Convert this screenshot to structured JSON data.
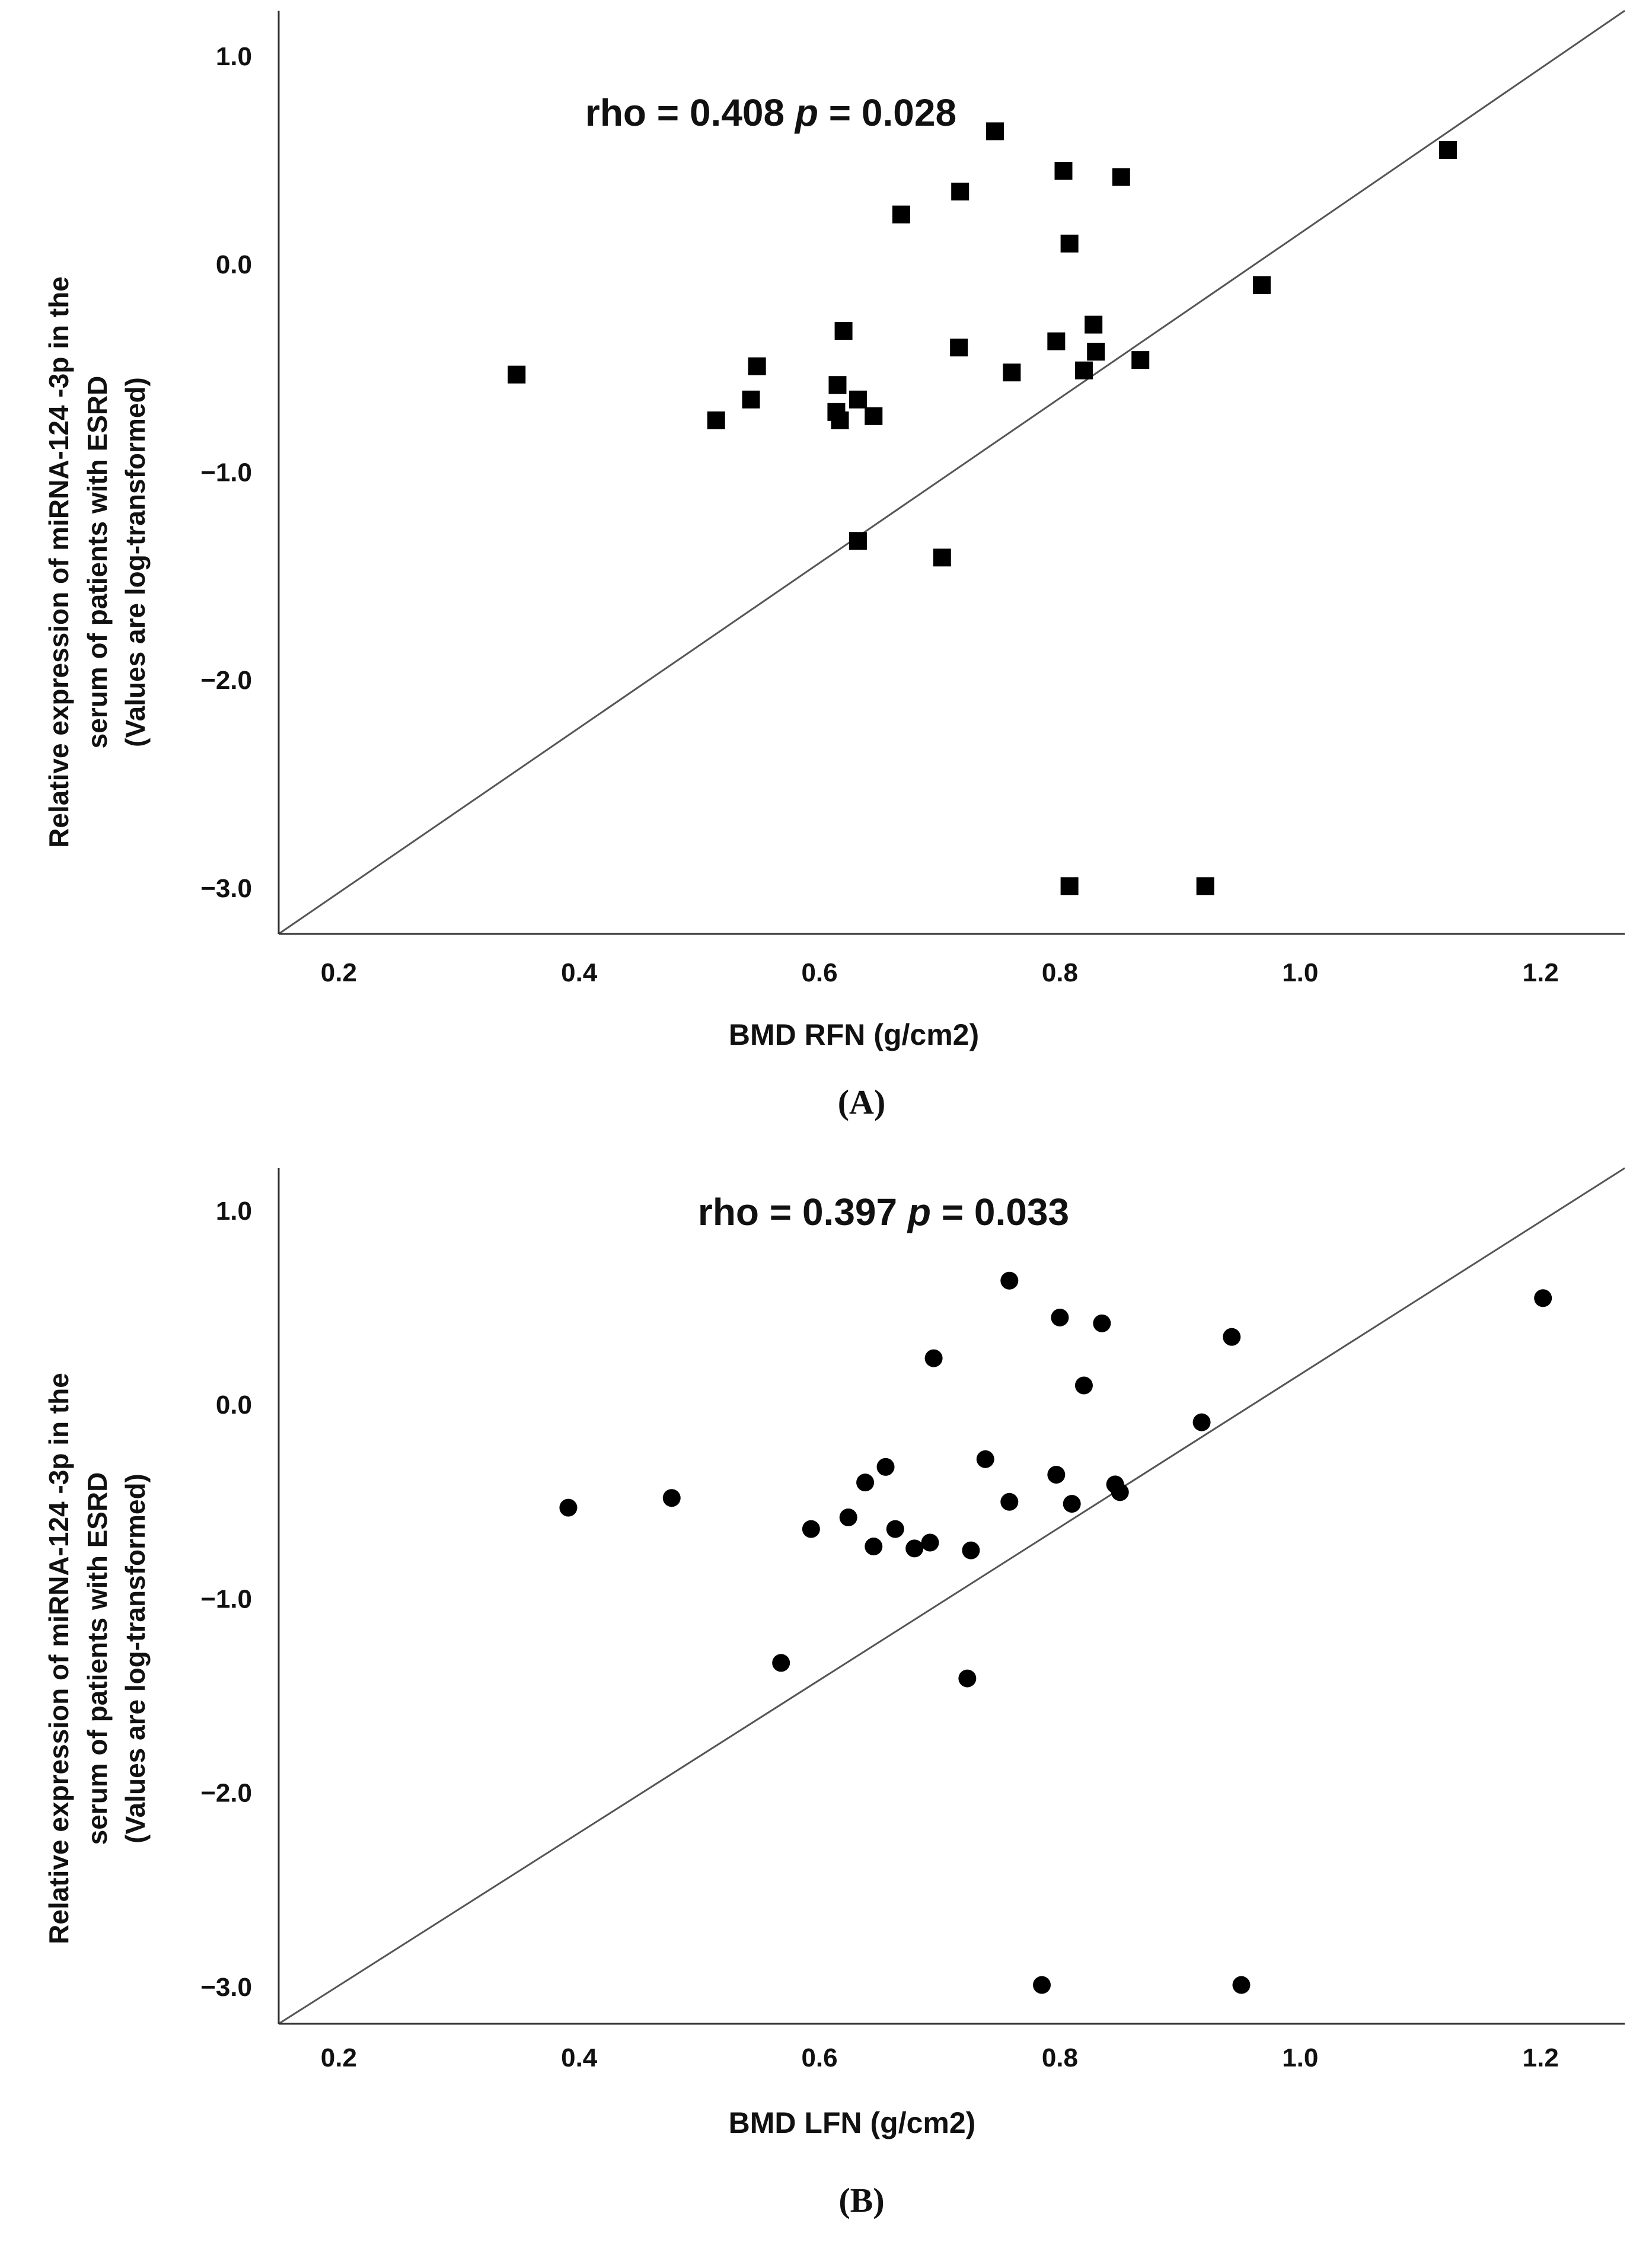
{
  "chart_data": [
    {
      "type": "scatter",
      "panel_label": "A",
      "marker": "square",
      "annotation": {
        "prefix": "rho = 0.408 ",
        "p_symbol": "p",
        "suffix": " = 0.028"
      },
      "xlabel": "BMD RFN (g/cm2)",
      "ylabel_lines": [
        "Relative expression of miRNA-124 -3p in the",
        "serum of patients with ESRD",
        "(Values are log-transformed)"
      ],
      "xlim": [
        0.15,
        1.27
      ],
      "ylim": [
        -3.22,
        1.22
      ],
      "xticks": [
        0.2,
        0.4,
        0.6,
        0.8,
        1.0,
        1.2
      ],
      "xtick_labels": [
        "0.2",
        "0.4",
        "0.6",
        "0.8",
        "1.0",
        "1.2"
      ],
      "yticks": [
        1.0,
        0.0,
        -1.0,
        -2.0,
        -3.0
      ],
      "ytick_labels": [
        "1.0",
        "0.0",
        "−1.0",
        "−2.0",
        "−3.0"
      ],
      "fit_line": [
        [
          0.15,
          -3.22
        ],
        [
          1.27,
          1.22
        ]
      ],
      "points": [
        {
          "x": 0.348,
          "y": -0.53
        },
        {
          "x": 0.514,
          "y": -0.75
        },
        {
          "x": 0.543,
          "y": -0.65
        },
        {
          "x": 0.548,
          "y": -0.49
        },
        {
          "x": 0.614,
          "y": -0.71
        },
        {
          "x": 0.615,
          "y": -0.58
        },
        {
          "x": 0.617,
          "y": -0.75
        },
        {
          "x": 0.62,
          "y": -0.32
        },
        {
          "x": 0.632,
          "y": -0.65
        },
        {
          "x": 0.645,
          "y": -0.73
        },
        {
          "x": 0.632,
          "y": -1.33
        },
        {
          "x": 0.668,
          "y": 0.24
        },
        {
          "x": 0.702,
          "y": -1.41
        },
        {
          "x": 0.717,
          "y": 0.35
        },
        {
          "x": 0.716,
          "y": -0.4
        },
        {
          "x": 0.746,
          "y": 0.64
        },
        {
          "x": 0.76,
          "y": -0.52
        },
        {
          "x": 0.797,
          "y": -0.37
        },
        {
          "x": 0.803,
          "y": 0.45
        },
        {
          "x": 0.808,
          "y": 0.1
        },
        {
          "x": 0.808,
          "y": -2.99
        },
        {
          "x": 0.82,
          "y": -0.51
        },
        {
          "x": 0.828,
          "y": -0.29
        },
        {
          "x": 0.83,
          "y": -0.42
        },
        {
          "x": 0.851,
          "y": 0.42
        },
        {
          "x": 0.867,
          "y": -0.46
        },
        {
          "x": 0.921,
          "y": -2.99
        },
        {
          "x": 0.968,
          "y": -0.1
        },
        {
          "x": 1.123,
          "y": 0.55
        }
      ]
    },
    {
      "type": "scatter",
      "panel_label": "B",
      "marker": "circle",
      "annotation": {
        "prefix": "rho = 0.397 ",
        "p_symbol": "p",
        "suffix": " = 0.033"
      },
      "xlabel": "BMD LFN (g/cm2)",
      "ylabel_lines": [
        "Relative expression of miRNA-124 -3p in the",
        "serum of patients with ESRD",
        "(Values are log-transformed)"
      ],
      "xlim": [
        0.15,
        1.27
      ],
      "ylim": [
        -3.19,
        1.22
      ],
      "xticks": [
        0.2,
        0.4,
        0.6,
        0.8,
        1.0,
        1.2
      ],
      "xtick_labels": [
        "0.2",
        "0.4",
        "0.6",
        "0.8",
        "1.0",
        "1.2"
      ],
      "yticks": [
        1.0,
        0.0,
        -1.0,
        -2.0,
        -3.0
      ],
      "ytick_labels": [
        "1.0",
        "0.0",
        "−1.0",
        "−2.0",
        "−3.0"
      ],
      "fit_line": [
        [
          0.15,
          -3.19
        ],
        [
          1.27,
          1.22
        ]
      ],
      "points": [
        {
          "x": 0.391,
          "y": -0.53
        },
        {
          "x": 0.477,
          "y": -0.48
        },
        {
          "x": 0.568,
          "y": -1.33
        },
        {
          "x": 0.593,
          "y": -0.64
        },
        {
          "x": 0.624,
          "y": -0.58
        },
        {
          "x": 0.638,
          "y": -0.4
        },
        {
          "x": 0.645,
          "y": -0.73
        },
        {
          "x": 0.655,
          "y": -0.32
        },
        {
          "x": 0.663,
          "y": -0.64
        },
        {
          "x": 0.679,
          "y": -0.74
        },
        {
          "x": 0.692,
          "y": -0.71
        },
        {
          "x": 0.695,
          "y": 0.24
        },
        {
          "x": 0.723,
          "y": -1.41
        },
        {
          "x": 0.726,
          "y": -0.75
        },
        {
          "x": 0.738,
          "y": -0.28
        },
        {
          "x": 0.758,
          "y": 0.64
        },
        {
          "x": 0.758,
          "y": -0.5
        },
        {
          "x": 0.785,
          "y": -2.99
        },
        {
          "x": 0.797,
          "y": -0.36
        },
        {
          "x": 0.8,
          "y": 0.45
        },
        {
          "x": 0.81,
          "y": -0.51
        },
        {
          "x": 0.82,
          "y": 0.1
        },
        {
          "x": 0.835,
          "y": 0.42
        },
        {
          "x": 0.846,
          "y": -0.41
        },
        {
          "x": 0.85,
          "y": -0.45
        },
        {
          "x": 0.918,
          "y": -0.09
        },
        {
          "x": 0.943,
          "y": 0.35
        },
        {
          "x": 0.951,
          "y": -2.99
        },
        {
          "x": 1.202,
          "y": 0.55
        }
      ]
    }
  ]
}
